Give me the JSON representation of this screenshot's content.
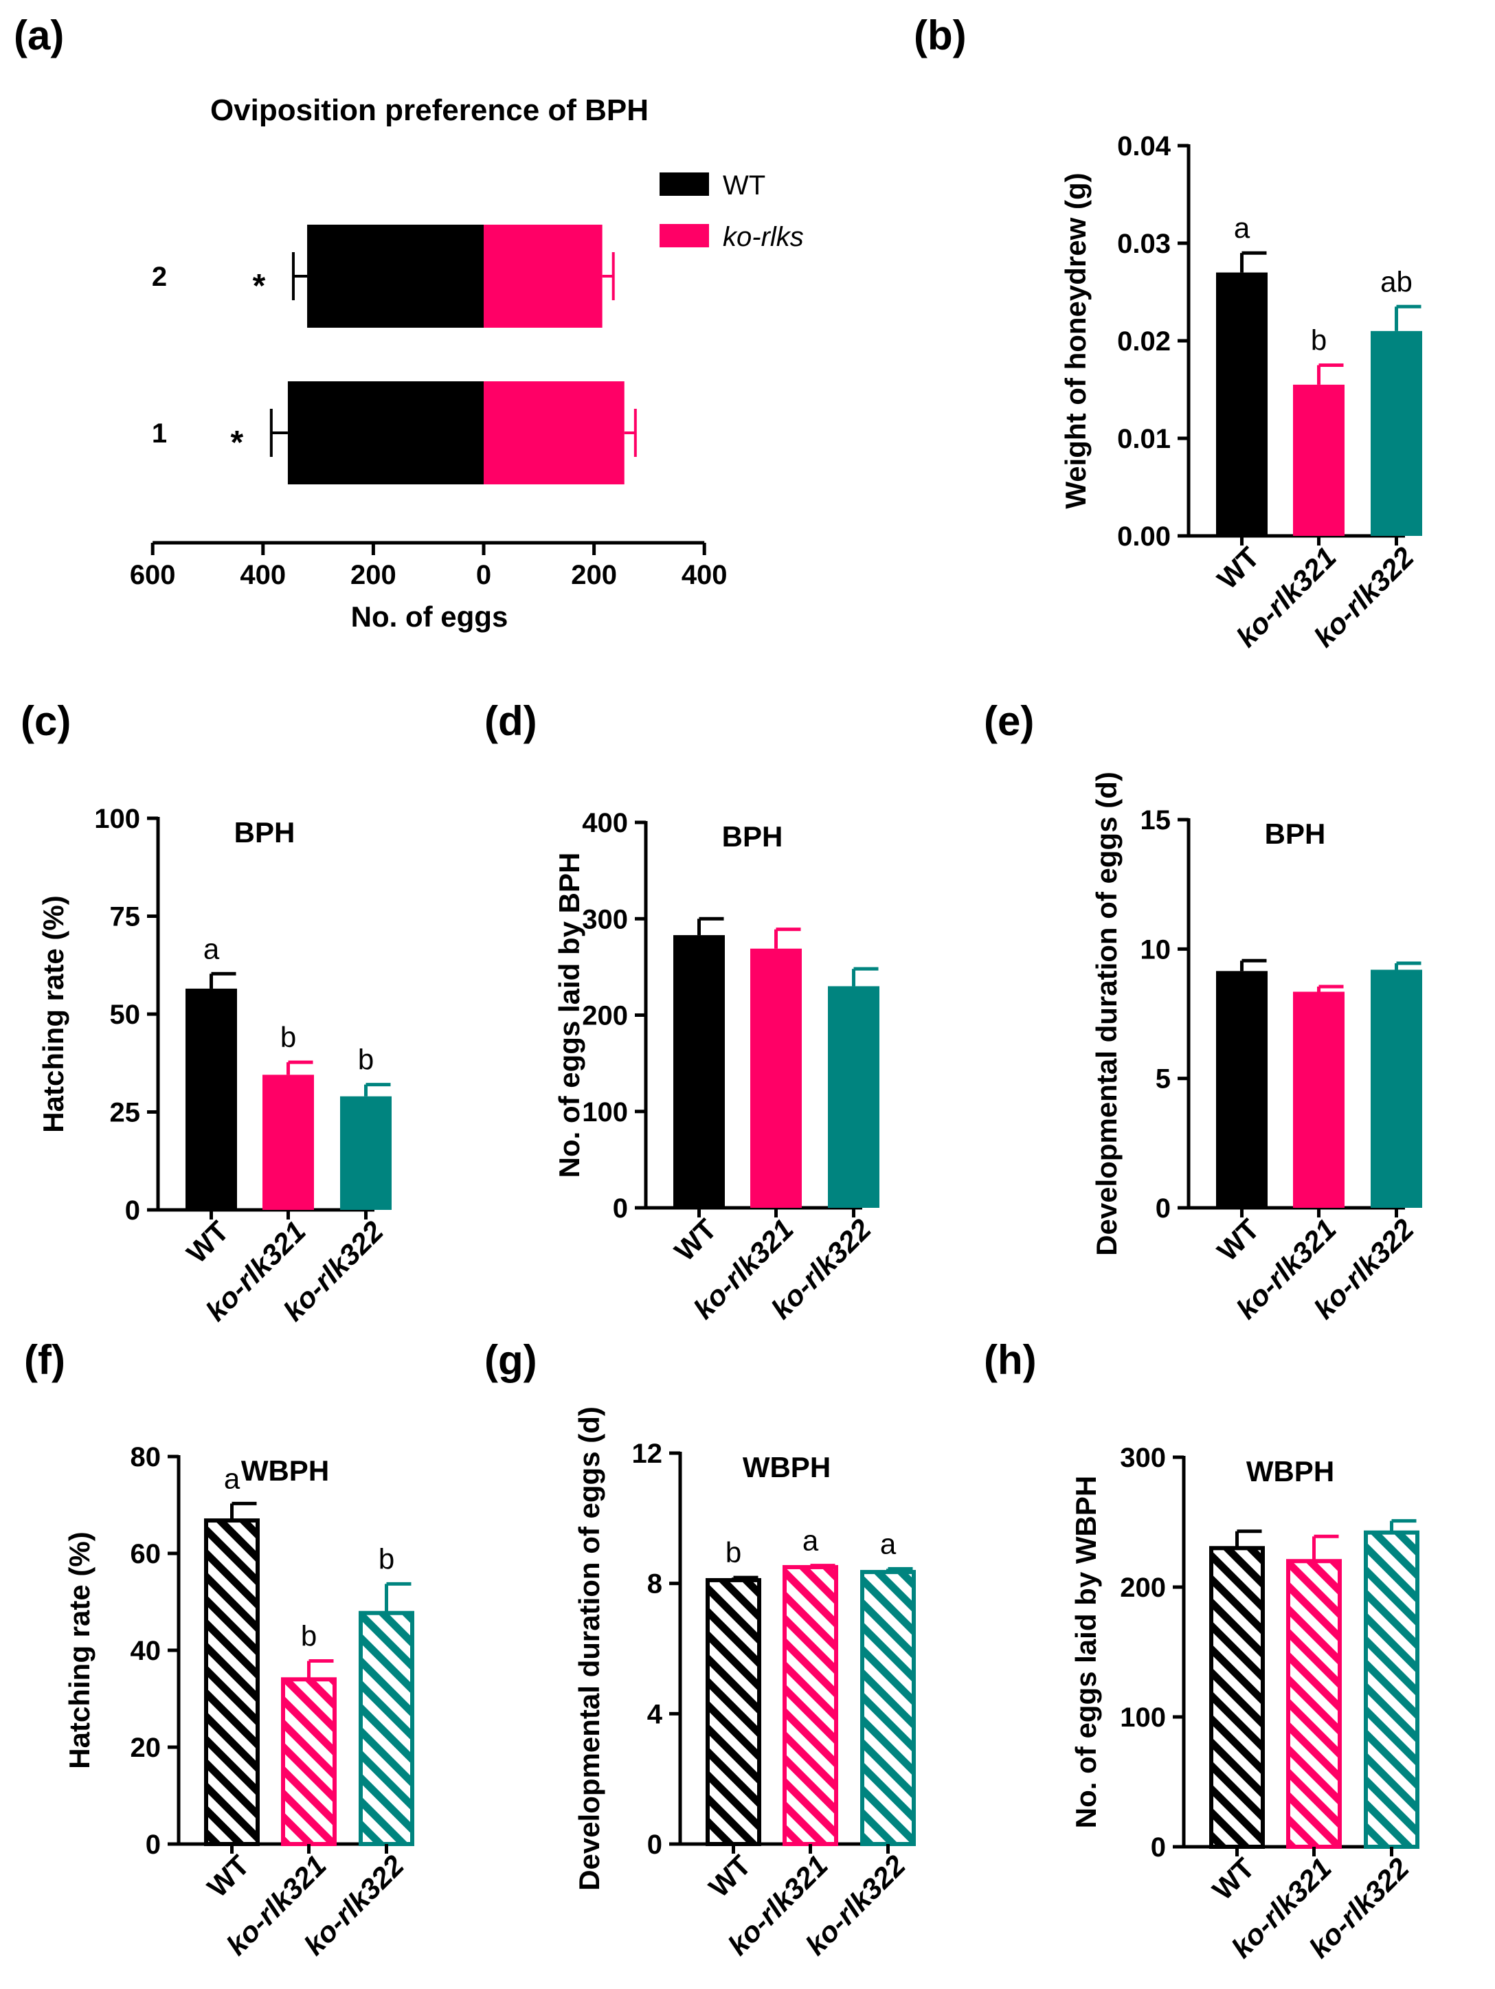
{
  "colors": {
    "wt": "#000000",
    "rlk321": "#ff0066",
    "rlk322": "#00847f",
    "axis": "#000000"
  },
  "chart_data": [
    {
      "id": "a",
      "panel_label": "(a)",
      "type": "bar",
      "orientation": "horizontal-diverging",
      "title": "Oviposition preference of BPH",
      "xlabel": "No. of eggs",
      "xticks": [
        "600",
        "400",
        "200",
        "0",
        "200",
        "400"
      ],
      "xlim": [
        -600,
        400
      ],
      "categories": [
        "2",
        "1"
      ],
      "series": [
        {
          "name": "WT",
          "values": [
            -320,
            -355
          ],
          "errors": [
            25,
            30
          ]
        },
        {
          "name": "ko-rlks",
          "values": [
            215,
            255
          ],
          "errors": [
            20,
            20
          ]
        }
      ],
      "sig": [
        "*",
        "*"
      ],
      "legend": [
        "WT",
        "ko-rlks"
      ]
    },
    {
      "id": "b",
      "panel_label": "(b)",
      "type": "bar",
      "title": "",
      "ylabel": "Weight of honeydrew (g)",
      "yticks": [
        "0.00",
        "0.01",
        "0.02",
        "0.03",
        "0.04"
      ],
      "ylim": [
        0,
        0.04
      ],
      "categories": [
        "WT",
        "ko-rlk321",
        "ko-rlk322"
      ],
      "values": [
        0.027,
        0.0155,
        0.021
      ],
      "errors": [
        0.002,
        0.002,
        0.0025
      ],
      "letters": [
        "a",
        "b",
        "ab"
      ],
      "hatched": false
    },
    {
      "id": "c",
      "panel_label": "(c)",
      "type": "bar",
      "title": "BPH",
      "ylabel": "Hatching rate  (%)",
      "yticks": [
        "0",
        "25",
        "50",
        "75",
        "100"
      ],
      "ylim": [
        0,
        100
      ],
      "categories": [
        "WT",
        "ko-rlk321",
        "ko-rlk322"
      ],
      "values": [
        56.5,
        34.5,
        29
      ],
      "errors": [
        3.8,
        3.2,
        3.0
      ],
      "letters": [
        "a",
        "b",
        "b"
      ],
      "hatched": false
    },
    {
      "id": "d",
      "panel_label": "(d)",
      "type": "bar",
      "title": "BPH",
      "ylabel": "No. of eggs  laid by BPH",
      "yticks": [
        "0",
        "100",
        "200",
        "300",
        "400"
      ],
      "ylim": [
        0,
        400
      ],
      "categories": [
        "WT",
        "ko-rlk321",
        "ko-rlk322"
      ],
      "values": [
        283,
        269,
        230
      ],
      "errors": [
        17,
        20,
        18
      ],
      "letters": [
        "",
        "",
        ""
      ],
      "hatched": false
    },
    {
      "id": "e",
      "panel_label": "(e)",
      "type": "bar",
      "title": "BPH",
      "ylabel": "Developmental duration of eggs (d)",
      "yticks": [
        "0",
        "5",
        "10",
        "15"
      ],
      "ylim": [
        0,
        15
      ],
      "categories": [
        "WT",
        "ko-rlk321",
        "ko-rlk322"
      ],
      "values": [
        9.15,
        8.35,
        9.2
      ],
      "errors": [
        0.4,
        0.2,
        0.25
      ],
      "letters": [
        "",
        "",
        ""
      ],
      "hatched": false
    },
    {
      "id": "f",
      "panel_label": "(f)",
      "type": "bar",
      "title": "WBPH",
      "ylabel": "Hatching rate (%)",
      "yticks": [
        "0",
        "20",
        "40",
        "60",
        "80"
      ],
      "ylim": [
        0,
        80
      ],
      "categories": [
        "WT",
        "ko-rlk321",
        "ko-rlk322"
      ],
      "values": [
        66.8,
        34,
        47.7
      ],
      "errors": [
        3.5,
        3.8,
        6.0
      ],
      "letters": [
        "a",
        "b",
        "b"
      ],
      "hatched": true
    },
    {
      "id": "g",
      "panel_label": "(g)",
      "type": "bar",
      "title": "WBPH",
      "ylabel": "Developmental duration of eggs (d)",
      "yticks": [
        "0",
        "4",
        "8",
        "12"
      ],
      "ylim": [
        0,
        12
      ],
      "categories": [
        "WT",
        "ko-rlk321",
        "ko-rlk322"
      ],
      "values": [
        8.1,
        8.5,
        8.35
      ],
      "errors": [
        0.08,
        0.05,
        0.1
      ],
      "letters": [
        "b",
        "a",
        "a"
      ],
      "hatched": true
    },
    {
      "id": "h",
      "panel_label": "(h)",
      "type": "bar",
      "title": "WBPH",
      "ylabel": "No. of eggs laid by WBPH",
      "yticks": [
        "0",
        "100",
        "200",
        "300"
      ],
      "ylim": [
        0,
        300
      ],
      "categories": [
        "WT",
        "ko-rlk321",
        "ko-rlk322"
      ],
      "values": [
        230,
        220,
        242
      ],
      "errors": [
        13,
        19,
        9
      ],
      "letters": [
        "",
        "",
        ""
      ],
      "hatched": true
    }
  ]
}
